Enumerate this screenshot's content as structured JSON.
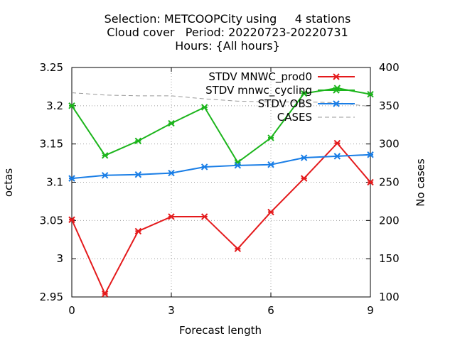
{
  "title_lines": [
    "Selection: METCOOPCity using     4 stations",
    "Cloud cover   Period: 20220723-20220731",
    "Hours: {All hours}"
  ],
  "chart_data": {
    "type": "line",
    "xlabel": "Forecast length",
    "ylabel": "octas",
    "y2label": "No cases",
    "xlim": [
      0,
      9
    ],
    "ylim": [
      2.95,
      3.25
    ],
    "y2lim": [
      100,
      400
    ],
    "x_ticks": [
      "0",
      "3",
      "6",
      "9"
    ],
    "y_ticks": [
      "2.95",
      "3",
      "3.05",
      "3.1",
      "3.15",
      "3.2",
      "3.25"
    ],
    "y2_ticks": [
      "100",
      "150",
      "200",
      "250",
      "300",
      "350",
      "400"
    ],
    "grid": true,
    "legend_position": "top-right",
    "x": [
      0,
      1,
      2,
      3,
      4,
      5,
      6,
      7,
      8,
      9
    ],
    "series": [
      {
        "name": "STDV MNWC_prod0",
        "axis": "y",
        "color": "#e41a1c",
        "marker": "x",
        "dashed": false,
        "values": [
          3.051,
          2.954,
          3.036,
          3.055,
          3.055,
          3.013,
          3.061,
          3.105,
          3.151,
          3.1
        ]
      },
      {
        "name": "STDV mnwc_cycling",
        "axis": "y",
        "color": "#1cb51c",
        "marker": "x",
        "dashed": false,
        "values": [
          3.2,
          3.135,
          3.154,
          3.177,
          3.198,
          3.126,
          3.158,
          3.216,
          3.223,
          3.215
        ]
      },
      {
        "name": "STDV OBS",
        "axis": "y",
        "color": "#1a7ee6",
        "marker": "x",
        "dashed": false,
        "values": [
          3.105,
          3.109,
          3.11,
          3.112,
          3.12,
          3.122,
          3.123,
          3.132,
          3.134,
          3.136
        ]
      },
      {
        "name": "CASES",
        "axis": "y2",
        "color": "#999999",
        "marker": "none",
        "dashed": true,
        "values": [
          367,
          364,
          363,
          363,
          359,
          356,
          355,
          355,
          354,
          349
        ]
      }
    ]
  }
}
